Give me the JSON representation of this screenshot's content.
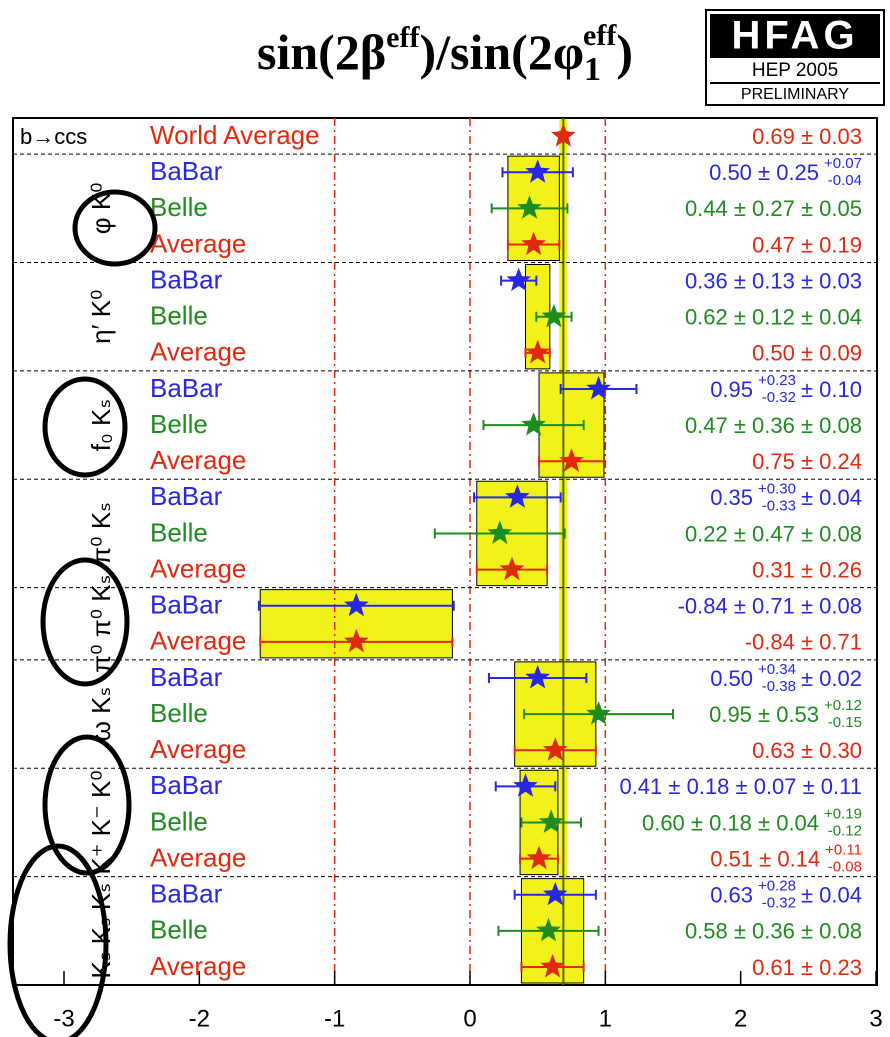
{
  "chart_data": {
    "type": "forest",
    "title": [
      "sin(2β",
      "eff",
      ")/sin(2φ",
      "1",
      "eff",
      ")"
    ],
    "logo": {
      "name": "HFAG",
      "event": "HEP 2005",
      "status": "PRELIMINARY"
    },
    "xlim": [
      -3,
      3
    ],
    "xticks": [
      -3,
      -2,
      -1,
      0,
      1,
      2,
      3
    ],
    "grid_lines": [
      -1,
      0,
      1
    ],
    "band_color": "#f2f21a",
    "groups": [
      {
        "label": "b→ccs",
        "entries": [
          {
            "name": "World Average",
            "color": "#e02a10",
            "value": 0.69,
            "error": 0.03,
            "value_label": "0.69 ± 0.03"
          }
        ]
      },
      {
        "label": "φ K⁰",
        "entries": [
          {
            "name": "BaBar",
            "color": "#2828e0",
            "value": 0.5,
            "error": 0.26,
            "value_label": "0.50 ± 0.25",
            "up": "+0.07",
            "down": "-0.04"
          },
          {
            "name": "Belle",
            "color": "#1e8c1e",
            "value": 0.44,
            "error": 0.28,
            "value_label": "0.44 ± 0.27 ± 0.05"
          },
          {
            "name": "Average",
            "color": "#e02a10",
            "value": 0.47,
            "error": 0.19,
            "value_label": "0.47 ± 0.19"
          }
        ]
      },
      {
        "label": "η′ K⁰",
        "entries": [
          {
            "name": "BaBar",
            "color": "#2828e0",
            "value": 0.36,
            "error": 0.13,
            "value_label": "0.36 ± 0.13 ± 0.03"
          },
          {
            "name": "Belle",
            "color": "#1e8c1e",
            "value": 0.62,
            "error": 0.13,
            "value_label": "0.62 ± 0.12 ± 0.04"
          },
          {
            "name": "Average",
            "color": "#e02a10",
            "value": 0.5,
            "error": 0.09,
            "value_label": "0.50 ± 0.09"
          }
        ]
      },
      {
        "label": "f₀ Kₛ",
        "entries": [
          {
            "name": "BaBar",
            "color": "#2828e0",
            "value": 0.95,
            "error": 0.28,
            "value_label": "0.95",
            "up": "+0.23",
            "down": "-0.32",
            "suffix": "± 0.10"
          },
          {
            "name": "Belle",
            "color": "#1e8c1e",
            "value": 0.47,
            "error": 0.37,
            "value_label": "0.47 ± 0.36 ± 0.08"
          },
          {
            "name": "Average",
            "color": "#e02a10",
            "value": 0.75,
            "error": 0.24,
            "value_label": "0.75 ± 0.24"
          }
        ]
      },
      {
        "label": "π⁰ Kₛ",
        "entries": [
          {
            "name": "BaBar",
            "color": "#2828e0",
            "value": 0.35,
            "error": 0.32,
            "value_label": "0.35",
            "up": "+0.30",
            "down": "-0.33",
            "suffix": "± 0.04"
          },
          {
            "name": "Belle",
            "color": "#1e8c1e",
            "value": 0.22,
            "error": 0.48,
            "value_label": "0.22 ± 0.47 ± 0.08"
          },
          {
            "name": "Average",
            "color": "#e02a10",
            "value": 0.31,
            "error": 0.26,
            "value_label": "0.31 ± 0.26"
          }
        ]
      },
      {
        "label": "π⁰ π⁰ Kₛ",
        "entries": [
          {
            "name": "BaBar",
            "color": "#2828e0",
            "value": -0.84,
            "error": 0.72,
            "value_label": "-0.84 ± 0.71 ± 0.08"
          },
          {
            "name": "Average",
            "color": "#e02a10",
            "value": -0.84,
            "error": 0.71,
            "value_label": "-0.84 ± 0.71"
          }
        ]
      },
      {
        "label": "ω Kₛ",
        "entries": [
          {
            "name": "BaBar",
            "color": "#2828e0",
            "value": 0.5,
            "error": 0.36,
            "value_label": "0.50",
            "up": "+0.34",
            "down": "-0.38",
            "suffix": "± 0.02"
          },
          {
            "name": "Belle",
            "color": "#1e8c1e",
            "value": 0.95,
            "error": 0.55,
            "value_label": "0.95 ± 0.53",
            "up": "+0.12",
            "down": "-0.15"
          },
          {
            "name": "Average",
            "color": "#e02a10",
            "value": 0.63,
            "error": 0.3,
            "value_label": "0.63 ± 0.30"
          }
        ]
      },
      {
        "label": "K⁺ K⁻ K⁰",
        "entries": [
          {
            "name": "BaBar",
            "color": "#2828e0",
            "value": 0.41,
            "error": 0.22,
            "value_label": "0.41 ± 0.18 ± 0.07 ± 0.11"
          },
          {
            "name": "Belle",
            "color": "#1e8c1e",
            "value": 0.6,
            "error": 0.22,
            "value_label": "0.60 ± 0.18 ± 0.04",
            "up": "+0.19",
            "down": "-0.12"
          },
          {
            "name": "Average",
            "color": "#e02a10",
            "value": 0.51,
            "error": 0.14,
            "value_label": "0.51 ± 0.14",
            "up": "+0.11",
            "down": "-0.08"
          }
        ]
      },
      {
        "label": "Kₛ Kₛ Kₛ",
        "entries": [
          {
            "name": "BaBar",
            "color": "#2828e0",
            "value": 0.63,
            "error": 0.3,
            "value_label": "0.63",
            "up": "+0.28",
            "down": "-0.32",
            "suffix": "± 0.04"
          },
          {
            "name": "Belle",
            "color": "#1e8c1e",
            "value": 0.58,
            "error": 0.37,
            "value_label": "0.58 ± 0.36 ± 0.08"
          },
          {
            "name": "Average",
            "color": "#e02a10",
            "value": 0.61,
            "error": 0.23,
            "value_label": "0.61 ± 0.23"
          }
        ]
      }
    ]
  }
}
